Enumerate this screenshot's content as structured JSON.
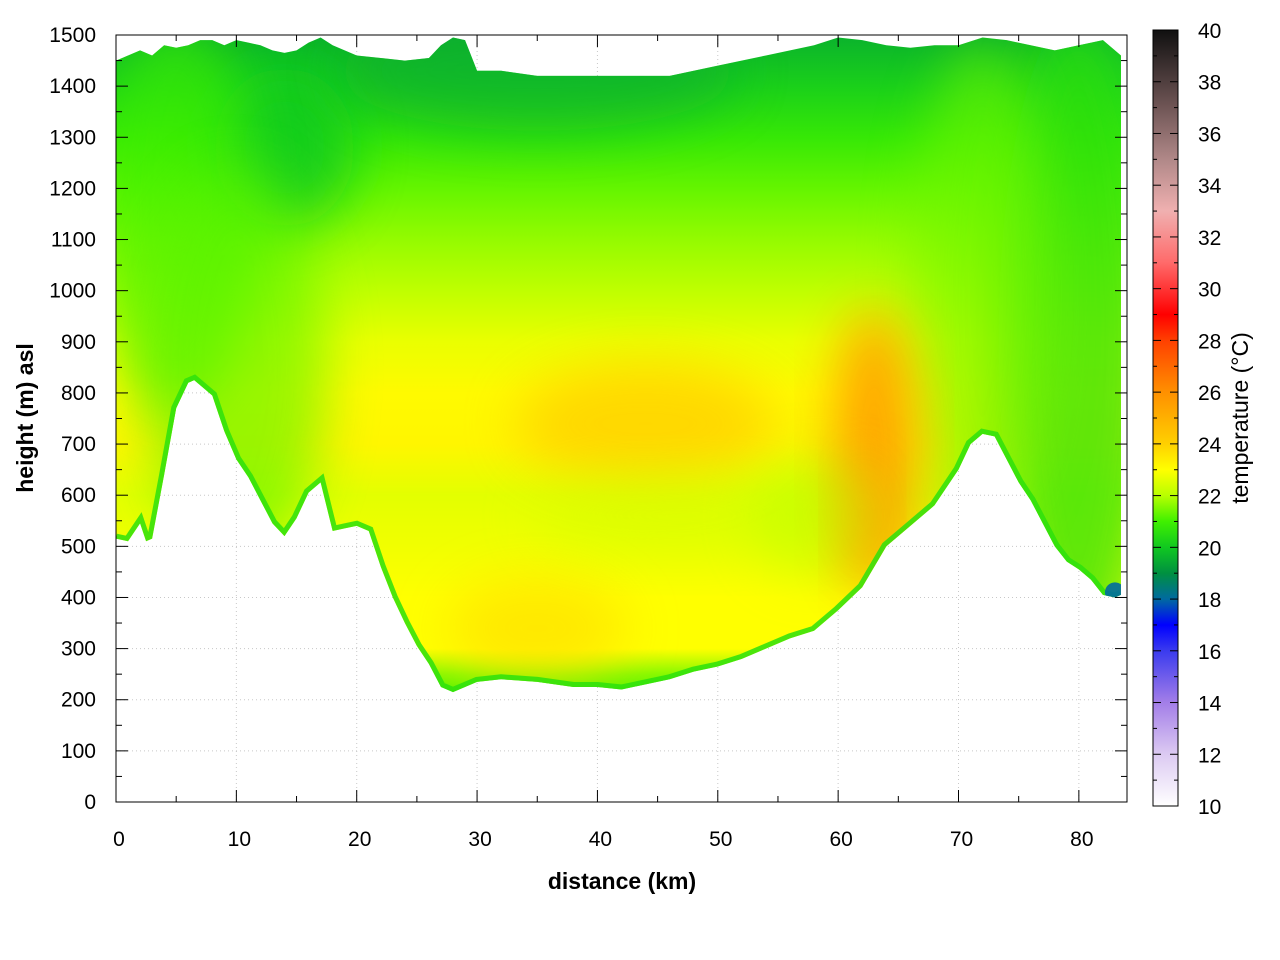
{
  "chart_data": {
    "type": "heatmap",
    "title": "",
    "xlabel": "distance (km)",
    "ylabel": "height (m) asl",
    "colorbar_label": "temperature (°C)",
    "xlim": [
      0,
      84
    ],
    "ylim": [
      0,
      1500
    ],
    "x_ticks": [
      0,
      10,
      20,
      30,
      40,
      50,
      60,
      70,
      80
    ],
    "y_ticks": [
      0,
      100,
      200,
      300,
      400,
      500,
      600,
      700,
      800,
      900,
      1000,
      1100,
      1200,
      1300,
      1400,
      1500
    ],
    "colorbar_range": [
      10,
      40
    ],
    "colorbar_ticks": [
      10,
      12,
      14,
      16,
      18,
      20,
      22,
      24,
      26,
      28,
      30,
      32,
      34,
      36,
      38,
      40
    ],
    "grid": true,
    "terrain_profile": {
      "distance_km": [
        0,
        1,
        2,
        2.5,
        3,
        4,
        5,
        6,
        6.5,
        7,
        8,
        9,
        10,
        11,
        12,
        13,
        14,
        15,
        16,
        17,
        18,
        19,
        20,
        21,
        22,
        23,
        24,
        25,
        26,
        27,
        28,
        30,
        32,
        35,
        38,
        40,
        42,
        44,
        46,
        48,
        50,
        52,
        54,
        56,
        58,
        60,
        62,
        64,
        66,
        68,
        70,
        71,
        72,
        73,
        74,
        75,
        76,
        77,
        78,
        79,
        80,
        81,
        82,
        83,
        83.5
      ],
      "height_m": [
        515,
        510,
        545,
        510,
        515,
        640,
        770,
        820,
        825,
        815,
        795,
        725,
        670,
        635,
        590,
        545,
        520,
        555,
        605,
        625,
        530,
        535,
        540,
        530,
        460,
        400,
        350,
        305,
        270,
        225,
        215,
        235,
        240,
        235,
        225,
        225,
        220,
        230,
        240,
        255,
        265,
        280,
        300,
        320,
        335,
        375,
        420,
        500,
        540,
        580,
        650,
        700,
        720,
        715,
        670,
        625,
        590,
        545,
        500,
        470,
        455,
        435,
        405,
        400,
        405
      ]
    },
    "top_profile": {
      "distance_km": [
        0,
        1,
        2,
        3,
        4,
        5,
        6,
        7,
        8,
        9,
        10,
        11,
        12,
        13,
        14,
        15,
        16,
        17,
        18,
        19,
        20,
        22,
        24,
        26,
        27,
        28,
        29,
        30,
        32,
        35,
        38,
        40,
        43,
        46,
        50,
        54,
        56,
        58,
        60,
        62,
        64,
        66,
        68,
        70,
        72,
        74,
        76,
        78,
        80,
        82,
        83.5
      ],
      "height_m": [
        1450,
        1460,
        1470,
        1460,
        1480,
        1475,
        1480,
        1490,
        1490,
        1480,
        1490,
        1485,
        1480,
        1470,
        1465,
        1470,
        1485,
        1495,
        1480,
        1470,
        1460,
        1455,
        1450,
        1455,
        1480,
        1495,
        1490,
        1430,
        1430,
        1420,
        1420,
        1420,
        1420,
        1420,
        1440,
        1460,
        1470,
        1480,
        1495,
        1490,
        1480,
        1475,
        1480,
        1480,
        1495,
        1490,
        1480,
        1470,
        1480,
        1490,
        1460
      ]
    },
    "warm_cores": [
      {
        "distance_km": 35,
        "height_m": 330,
        "temperature_c": 23.5
      },
      {
        "distance_km": 44,
        "height_m": 740,
        "temperature_c": 24
      },
      {
        "distance_km": 63,
        "height_m": 680,
        "temperature_c": 26
      },
      {
        "distance_km": 62,
        "height_m": 560,
        "temperature_c": 25.5
      }
    ],
    "colormap_stops": [
      {
        "value": 10,
        "color": "#ffffff"
      },
      {
        "value": 12,
        "color": "#dccaf2"
      },
      {
        "value": 14,
        "color": "#a37ee8"
      },
      {
        "value": 16,
        "color": "#3b3bee"
      },
      {
        "value": 17,
        "color": "#0000ff"
      },
      {
        "value": 18,
        "color": "#006aa0"
      },
      {
        "value": 19,
        "color": "#009040"
      },
      {
        "value": 20,
        "color": "#10c820"
      },
      {
        "value": 21,
        "color": "#40f000"
      },
      {
        "value": 22,
        "color": "#b8ff00"
      },
      {
        "value": 23,
        "color": "#ffff00"
      },
      {
        "value": 24,
        "color": "#ffd000"
      },
      {
        "value": 26,
        "color": "#ff9000"
      },
      {
        "value": 28,
        "color": "#ff4000"
      },
      {
        "value": 29,
        "color": "#ff0000"
      },
      {
        "value": 31,
        "color": "#ff6a6a"
      },
      {
        "value": 33,
        "color": "#f0b0b0"
      },
      {
        "value": 35,
        "color": "#b08888"
      },
      {
        "value": 37,
        "color": "#705656"
      },
      {
        "value": 40,
        "color": "#101010"
      }
    ]
  }
}
